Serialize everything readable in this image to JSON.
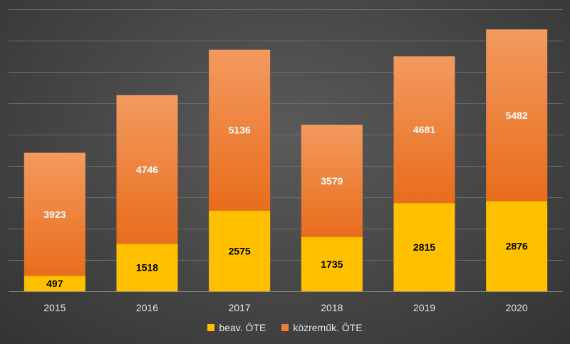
{
  "chart_data": {
    "type": "bar",
    "stacked": true,
    "categories": [
      "2015",
      "2016",
      "2017",
      "2018",
      "2019",
      "2020"
    ],
    "series": [
      {
        "name": "beav. ÖTE",
        "values": [
          497,
          1518,
          2575,
          1735,
          2815,
          2876
        ],
        "color": "#ffc000",
        "label_color": "#000000"
      },
      {
        "name": "közreműk. ÖTE",
        "values": [
          3923,
          4746,
          5136,
          3579,
          4681,
          5482
        ],
        "color": "#ed7d31",
        "label_color": "#ffffff"
      }
    ],
    "ylim": [
      0,
      9000
    ],
    "y_tick_step": 1000,
    "grid": true,
    "y_axis_labels_shown": false,
    "legend_position": "bottom"
  }
}
